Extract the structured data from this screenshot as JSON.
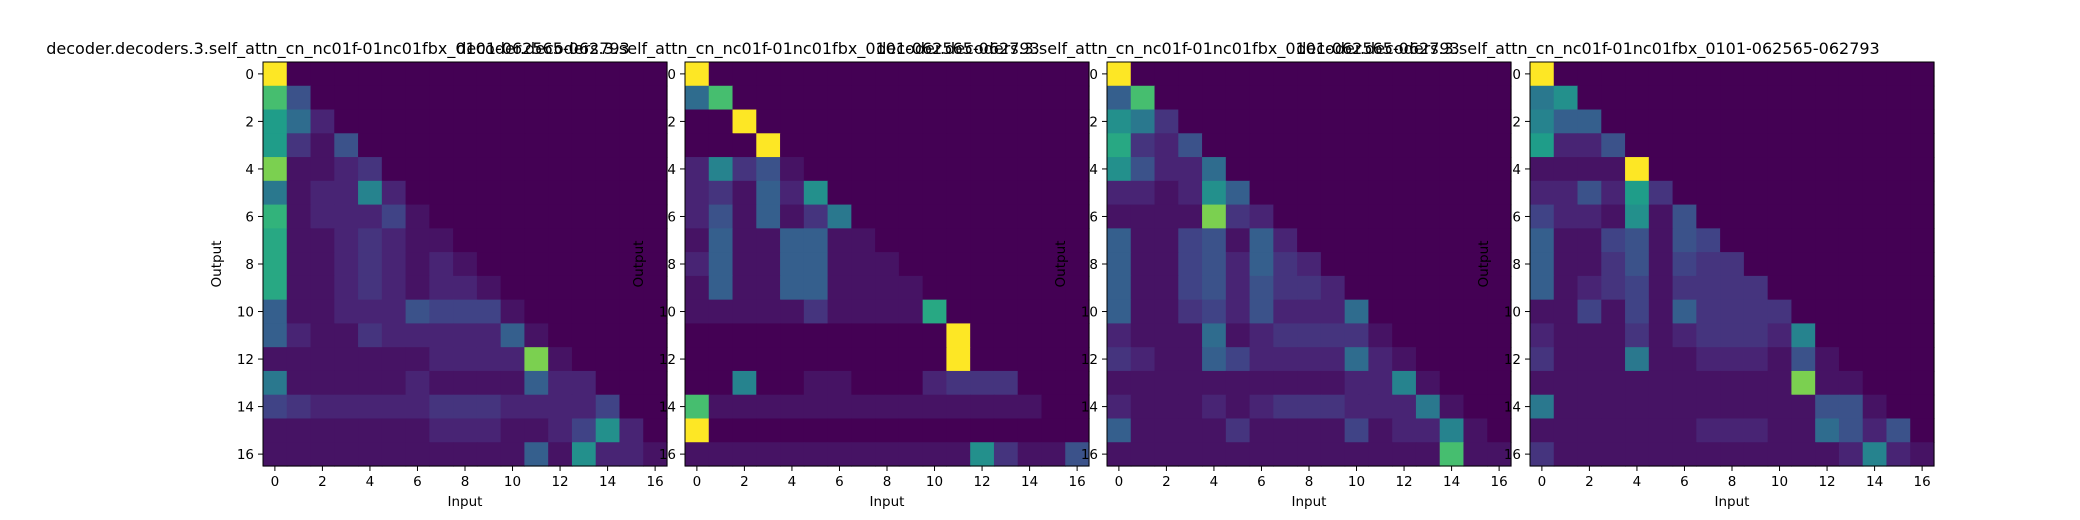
{
  "chart_data": [
    {
      "type": "heatmap",
      "title": "decoder.decoders.3.self_attn_cn_nc01f-01nc01fbx_0101-062565-062793",
      "xlabel": "Input",
      "ylabel": "Output",
      "xticks": [
        0,
        2,
        4,
        6,
        8,
        10,
        12,
        14,
        16
      ],
      "yticks": [
        0,
        2,
        4,
        6,
        8,
        10,
        12,
        14,
        16
      ],
      "colormap": "viridis",
      "rows": 17,
      "cols": 17,
      "values": [
        [
          1.0,
          0,
          0,
          0,
          0,
          0,
          0,
          0,
          0,
          0,
          0,
          0,
          0,
          0,
          0,
          0,
          0
        ],
        [
          0.7,
          0.25,
          0,
          0,
          0,
          0,
          0,
          0,
          0,
          0,
          0,
          0,
          0,
          0,
          0,
          0,
          0
        ],
        [
          0.55,
          0.35,
          0.1,
          0,
          0,
          0,
          0,
          0,
          0,
          0,
          0,
          0,
          0,
          0,
          0,
          0,
          0
        ],
        [
          0.55,
          0.15,
          0.05,
          0.25,
          0,
          0,
          0,
          0,
          0,
          0,
          0,
          0,
          0,
          0,
          0,
          0,
          0
        ],
        [
          0.8,
          0.05,
          0.05,
          0.1,
          0.15,
          0,
          0,
          0,
          0,
          0,
          0,
          0,
          0,
          0,
          0,
          0,
          0
        ],
        [
          0.4,
          0.05,
          0.1,
          0.1,
          0.45,
          0.1,
          0,
          0,
          0,
          0,
          0,
          0,
          0,
          0,
          0,
          0,
          0
        ],
        [
          0.65,
          0.05,
          0.1,
          0.1,
          0.1,
          0.2,
          0.05,
          0,
          0,
          0,
          0,
          0,
          0,
          0,
          0,
          0,
          0
        ],
        [
          0.6,
          0.05,
          0.05,
          0.1,
          0.15,
          0.1,
          0.05,
          0.05,
          0,
          0,
          0,
          0,
          0,
          0,
          0,
          0,
          0
        ],
        [
          0.6,
          0.05,
          0.05,
          0.1,
          0.15,
          0.1,
          0.05,
          0.1,
          0.05,
          0,
          0,
          0,
          0,
          0,
          0,
          0,
          0
        ],
        [
          0.6,
          0.05,
          0.05,
          0.1,
          0.15,
          0.1,
          0.05,
          0.1,
          0.1,
          0.05,
          0,
          0,
          0,
          0,
          0,
          0,
          0
        ],
        [
          0.3,
          0.05,
          0.05,
          0.1,
          0.1,
          0.1,
          0.25,
          0.2,
          0.2,
          0.2,
          0.05,
          0,
          0,
          0,
          0,
          0,
          0
        ],
        [
          0.3,
          0.1,
          0.05,
          0.05,
          0.15,
          0.1,
          0.1,
          0.1,
          0.1,
          0.1,
          0.3,
          0.05,
          0,
          0,
          0,
          0,
          0
        ],
        [
          0.05,
          0.05,
          0.05,
          0.05,
          0.05,
          0.05,
          0.05,
          0.1,
          0.1,
          0.1,
          0.1,
          0.8,
          0.05,
          0,
          0,
          0,
          0
        ],
        [
          0.4,
          0.05,
          0.05,
          0.05,
          0.05,
          0.05,
          0.1,
          0.05,
          0.05,
          0.05,
          0.05,
          0.3,
          0.1,
          0.1,
          0,
          0,
          0
        ],
        [
          0.2,
          0.15,
          0.1,
          0.1,
          0.1,
          0.1,
          0.1,
          0.15,
          0.15,
          0.15,
          0.1,
          0.1,
          0.1,
          0.1,
          0.2,
          0,
          0
        ],
        [
          0.05,
          0.05,
          0.05,
          0.05,
          0.05,
          0.05,
          0.05,
          0.1,
          0.1,
          0.1,
          0.05,
          0.05,
          0.1,
          0.2,
          0.5,
          0.1,
          0
        ],
        [
          0.05,
          0.05,
          0.05,
          0.05,
          0.05,
          0.05,
          0.05,
          0.05,
          0.05,
          0.05,
          0.05,
          0.3,
          0.05,
          0.5,
          0.1,
          0.1,
          0.05
        ]
      ]
    },
    {
      "type": "heatmap",
      "title": "decoder.decoders.3.self_attn_cn_nc01f-01nc01fbx_0101-062565-062793",
      "xlabel": "Input",
      "ylabel": "Output",
      "xticks": [
        0,
        2,
        4,
        6,
        8,
        10,
        12,
        14,
        16
      ],
      "yticks": [
        0,
        2,
        4,
        6,
        8,
        10,
        12,
        14,
        16
      ],
      "colormap": "viridis",
      "rows": 17,
      "cols": 17,
      "values": [
        [
          1.0,
          0,
          0,
          0,
          0,
          0,
          0,
          0,
          0,
          0,
          0,
          0,
          0,
          0,
          0,
          0,
          0
        ],
        [
          0.35,
          0.7,
          0,
          0,
          0,
          0,
          0,
          0,
          0,
          0,
          0,
          0,
          0,
          0,
          0,
          0,
          0
        ],
        [
          0,
          0,
          1.0,
          0,
          0,
          0,
          0,
          0,
          0,
          0,
          0,
          0,
          0,
          0,
          0,
          0,
          0
        ],
        [
          0,
          0,
          0,
          1.0,
          0,
          0,
          0,
          0,
          0,
          0,
          0,
          0,
          0,
          0,
          0,
          0,
          0
        ],
        [
          0.1,
          0.45,
          0.15,
          0.25,
          0.05,
          0,
          0,
          0,
          0,
          0,
          0,
          0,
          0,
          0,
          0,
          0,
          0
        ],
        [
          0.1,
          0.15,
          0.05,
          0.3,
          0.1,
          0.5,
          0,
          0,
          0,
          0,
          0,
          0,
          0,
          0,
          0,
          0,
          0
        ],
        [
          0.1,
          0.25,
          0.05,
          0.3,
          0.05,
          0.15,
          0.4,
          0,
          0,
          0,
          0,
          0,
          0,
          0,
          0,
          0,
          0
        ],
        [
          0.05,
          0.3,
          0.05,
          0.05,
          0.3,
          0.3,
          0.05,
          0.05,
          0,
          0,
          0,
          0,
          0,
          0,
          0,
          0,
          0
        ],
        [
          0.1,
          0.3,
          0.05,
          0.05,
          0.3,
          0.3,
          0.05,
          0.05,
          0.05,
          0,
          0,
          0,
          0,
          0,
          0,
          0,
          0
        ],
        [
          0.05,
          0.3,
          0.05,
          0.05,
          0.3,
          0.3,
          0.05,
          0.05,
          0.05,
          0.05,
          0,
          0,
          0,
          0,
          0,
          0,
          0
        ],
        [
          0.05,
          0.05,
          0.05,
          0.05,
          0.05,
          0.15,
          0.05,
          0.05,
          0.05,
          0.05,
          0.6,
          0,
          0,
          0,
          0,
          0,
          0
        ],
        [
          0,
          0,
          0,
          0,
          0,
          0,
          0,
          0,
          0,
          0,
          0,
          1.0,
          0,
          0,
          0,
          0,
          0
        ],
        [
          0,
          0,
          0,
          0,
          0,
          0,
          0,
          0,
          0,
          0,
          0,
          1.0,
          0,
          0,
          0,
          0,
          0
        ],
        [
          0,
          0,
          0.45,
          0,
          0,
          0.05,
          0.05,
          0,
          0,
          0,
          0.1,
          0.15,
          0.15,
          0.15,
          0,
          0,
          0
        ],
        [
          0.7,
          0.05,
          0.05,
          0.05,
          0.05,
          0.05,
          0.05,
          0.05,
          0.05,
          0.05,
          0.05,
          0.05,
          0.05,
          0.05,
          0.05,
          0,
          0
        ],
        [
          1.0,
          0,
          0,
          0,
          0,
          0,
          0,
          0,
          0,
          0,
          0,
          0,
          0,
          0,
          0,
          0,
          0
        ],
        [
          0.05,
          0.05,
          0.05,
          0.05,
          0.05,
          0.05,
          0.05,
          0.05,
          0.05,
          0.05,
          0.05,
          0.05,
          0.5,
          0.15,
          0.05,
          0.05,
          0.25
        ]
      ]
    },
    {
      "type": "heatmap",
      "title": "decoder.decoders.3.self_attn_cn_nc01f-01nc01fbx_0101-062565-062793",
      "xlabel": "Input",
      "ylabel": "Output",
      "xticks": [
        0,
        2,
        4,
        6,
        8,
        10,
        12,
        14,
        16
      ],
      "yticks": [
        0,
        2,
        4,
        6,
        8,
        10,
        12,
        14,
        16
      ],
      "colormap": "viridis",
      "rows": 17,
      "cols": 17,
      "values": [
        [
          1.0,
          0,
          0,
          0,
          0,
          0,
          0,
          0,
          0,
          0,
          0,
          0,
          0,
          0,
          0,
          0,
          0
        ],
        [
          0.3,
          0.7,
          0,
          0,
          0,
          0,
          0,
          0,
          0,
          0,
          0,
          0,
          0,
          0,
          0,
          0,
          0
        ],
        [
          0.5,
          0.4,
          0.15,
          0,
          0,
          0,
          0,
          0,
          0,
          0,
          0,
          0,
          0,
          0,
          0,
          0,
          0
        ],
        [
          0.6,
          0.15,
          0.1,
          0.25,
          0,
          0,
          0,
          0,
          0,
          0,
          0,
          0,
          0,
          0,
          0,
          0,
          0
        ],
        [
          0.5,
          0.25,
          0.1,
          0.1,
          0.35,
          0,
          0,
          0,
          0,
          0,
          0,
          0,
          0,
          0,
          0,
          0,
          0
        ],
        [
          0.1,
          0.1,
          0.05,
          0.1,
          0.5,
          0.3,
          0,
          0,
          0,
          0,
          0,
          0,
          0,
          0,
          0,
          0,
          0
        ],
        [
          0.05,
          0.05,
          0.05,
          0.05,
          0.8,
          0.15,
          0.1,
          0,
          0,
          0,
          0,
          0,
          0,
          0,
          0,
          0,
          0
        ],
        [
          0.3,
          0.05,
          0.05,
          0.2,
          0.25,
          0.05,
          0.3,
          0.1,
          0,
          0,
          0,
          0,
          0,
          0,
          0,
          0,
          0
        ],
        [
          0.3,
          0.05,
          0.05,
          0.2,
          0.25,
          0.1,
          0.3,
          0.15,
          0.1,
          0,
          0,
          0,
          0,
          0,
          0,
          0,
          0
        ],
        [
          0.3,
          0.05,
          0.05,
          0.2,
          0.25,
          0.1,
          0.25,
          0.15,
          0.15,
          0.1,
          0,
          0,
          0,
          0,
          0,
          0,
          0
        ],
        [
          0.3,
          0.05,
          0.05,
          0.15,
          0.2,
          0.1,
          0.25,
          0.1,
          0.1,
          0.1,
          0.35,
          0,
          0,
          0,
          0,
          0,
          0
        ],
        [
          0.1,
          0.05,
          0.05,
          0.05,
          0.35,
          0.05,
          0.1,
          0.15,
          0.15,
          0.15,
          0.15,
          0.05,
          0,
          0,
          0,
          0,
          0
        ],
        [
          0.15,
          0.1,
          0.05,
          0.05,
          0.3,
          0.2,
          0.1,
          0.1,
          0.1,
          0.1,
          0.35,
          0.1,
          0.05,
          0,
          0,
          0,
          0
        ],
        [
          0.05,
          0.05,
          0.05,
          0.05,
          0.05,
          0.05,
          0.05,
          0.05,
          0.05,
          0.05,
          0.1,
          0.1,
          0.45,
          0.05,
          0,
          0,
          0
        ],
        [
          0.1,
          0.05,
          0.05,
          0.05,
          0.1,
          0.05,
          0.1,
          0.15,
          0.15,
          0.15,
          0.1,
          0.1,
          0.1,
          0.4,
          0.05,
          0,
          0
        ],
        [
          0.3,
          0.05,
          0.05,
          0.05,
          0.05,
          0.15,
          0.05,
          0.05,
          0.05,
          0.05,
          0.2,
          0.05,
          0.1,
          0.1,
          0.45,
          0.05,
          0
        ],
        [
          0.05,
          0.05,
          0.05,
          0.05,
          0.05,
          0.05,
          0.05,
          0.05,
          0.05,
          0.05,
          0.05,
          0.05,
          0.05,
          0.05,
          0.7,
          0.05,
          0.05
        ]
      ]
    },
    {
      "type": "heatmap",
      "title": "decoder.decoders.3.self_attn_cn_nc01f-01nc01fbx_0101-062565-062793",
      "xlabel": "Input",
      "ylabel": "Output",
      "xticks": [
        0,
        2,
        4,
        6,
        8,
        10,
        12,
        14,
        16
      ],
      "yticks": [
        0,
        2,
        4,
        6,
        8,
        10,
        12,
        14,
        16
      ],
      "colormap": "viridis",
      "rows": 17,
      "cols": 17,
      "values": [
        [
          1.0,
          0,
          0,
          0,
          0,
          0,
          0,
          0,
          0,
          0,
          0,
          0,
          0,
          0,
          0,
          0,
          0
        ],
        [
          0.4,
          0.5,
          0,
          0,
          0,
          0,
          0,
          0,
          0,
          0,
          0,
          0,
          0,
          0,
          0,
          0,
          0
        ],
        [
          0.45,
          0.3,
          0.3,
          0,
          0,
          0,
          0,
          0,
          0,
          0,
          0,
          0,
          0,
          0,
          0,
          0,
          0
        ],
        [
          0.55,
          0.1,
          0.1,
          0.25,
          0,
          0,
          0,
          0,
          0,
          0,
          0,
          0,
          0,
          0,
          0,
          0,
          0
        ],
        [
          0.05,
          0.05,
          0.05,
          0.05,
          1.0,
          0,
          0,
          0,
          0,
          0,
          0,
          0,
          0,
          0,
          0,
          0,
          0
        ],
        [
          0.1,
          0.1,
          0.25,
          0.1,
          0.55,
          0.15,
          0,
          0,
          0,
          0,
          0,
          0,
          0,
          0,
          0,
          0,
          0
        ],
        [
          0.2,
          0.1,
          0.1,
          0.05,
          0.5,
          0.05,
          0.25,
          0,
          0,
          0,
          0,
          0,
          0,
          0,
          0,
          0,
          0
        ],
        [
          0.3,
          0.05,
          0.05,
          0.2,
          0.25,
          0.05,
          0.25,
          0.2,
          0,
          0,
          0,
          0,
          0,
          0,
          0,
          0,
          0
        ],
        [
          0.3,
          0.05,
          0.05,
          0.15,
          0.25,
          0.05,
          0.2,
          0.15,
          0.15,
          0,
          0,
          0,
          0,
          0,
          0,
          0,
          0
        ],
        [
          0.3,
          0.05,
          0.1,
          0.15,
          0.2,
          0.05,
          0.15,
          0.15,
          0.15,
          0.15,
          0,
          0,
          0,
          0,
          0,
          0,
          0
        ],
        [
          0.05,
          0.05,
          0.2,
          0.05,
          0.2,
          0.05,
          0.3,
          0.15,
          0.15,
          0.15,
          0.15,
          0,
          0,
          0,
          0,
          0,
          0
        ],
        [
          0.1,
          0.05,
          0.05,
          0.05,
          0.15,
          0.05,
          0.1,
          0.15,
          0.15,
          0.15,
          0.1,
          0.45,
          0,
          0,
          0,
          0,
          0
        ],
        [
          0.15,
          0.05,
          0.05,
          0.05,
          0.4,
          0.05,
          0.05,
          0.1,
          0.1,
          0.1,
          0.05,
          0.25,
          0.05,
          0,
          0,
          0,
          0
        ],
        [
          0.05,
          0.05,
          0.05,
          0.05,
          0.05,
          0.05,
          0.05,
          0.05,
          0.05,
          0.05,
          0.05,
          0.8,
          0.05,
          0.05,
          0,
          0,
          0
        ],
        [
          0.4,
          0.05,
          0.05,
          0.05,
          0.05,
          0.05,
          0.05,
          0.05,
          0.05,
          0.05,
          0.05,
          0.05,
          0.25,
          0.25,
          0.05,
          0,
          0
        ],
        [
          0.05,
          0.05,
          0.05,
          0.05,
          0.05,
          0.05,
          0.05,
          0.1,
          0.1,
          0.1,
          0.05,
          0.05,
          0.35,
          0.25,
          0.1,
          0.25,
          0
        ],
        [
          0.15,
          0.05,
          0.05,
          0.05,
          0.05,
          0.05,
          0.05,
          0.05,
          0.05,
          0.05,
          0.05,
          0.05,
          0.05,
          0.1,
          0.45,
          0.1,
          0.05
        ]
      ]
    }
  ]
}
